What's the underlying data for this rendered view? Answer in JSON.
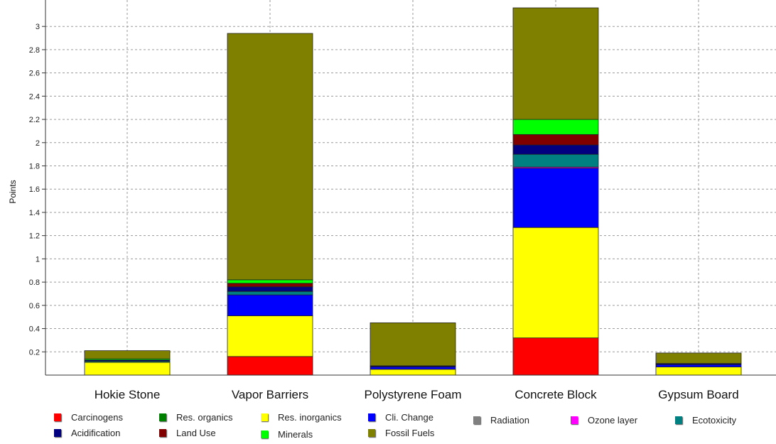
{
  "chart_data": {
    "type": "bar",
    "stacked": true,
    "title": "",
    "xlabel": "",
    "ylabel": "Points",
    "ylim": [
      0,
      3.16
    ],
    "yticks": [
      "0.2",
      "0.4",
      "0.6",
      "0.8",
      "1",
      "1.2",
      "1.4",
      "1.6",
      "1.8",
      "2",
      "2.2",
      "2.4",
      "2.6",
      "2.8",
      "3"
    ],
    "grid": true,
    "legend_position": "bottom",
    "categories": [
      "Hokie Stone",
      "Vapor Barriers",
      "Polystyrene Foam",
      "Concrete Block",
      "Gypsum Board"
    ],
    "series": [
      {
        "name": "Carcinogens",
        "color": "#ff0000",
        "values": [
          0.0,
          0.16,
          0.0,
          0.32,
          0.0
        ]
      },
      {
        "name": "Res. organics",
        "color": "#008000",
        "values": [
          0.0,
          0.0,
          0.0,
          0.0,
          0.0
        ]
      },
      {
        "name": "Res. inorganics",
        "color": "#ffff00",
        "values": [
          0.11,
          0.35,
          0.05,
          0.95,
          0.07
        ]
      },
      {
        "name": "Cli. Change",
        "color": "#0000ff",
        "values": [
          0.0,
          0.18,
          0.02,
          0.51,
          0.02
        ]
      },
      {
        "name": "Radiation",
        "color": "#808080",
        "values": [
          0.0,
          0.0,
          0.0,
          0.0,
          0.0
        ]
      },
      {
        "name": "Ozone layer",
        "color": "#ff00ff",
        "values": [
          0.0,
          0.0,
          0.0,
          0.01,
          0.0
        ]
      },
      {
        "name": "Ecotoxicity",
        "color": "#008080",
        "values": [
          0.01,
          0.03,
          0.0,
          0.11,
          0.0
        ]
      },
      {
        "name": "Acidification",
        "color": "#000080",
        "values": [
          0.01,
          0.04,
          0.01,
          0.08,
          0.01
        ]
      },
      {
        "name": "Land Use",
        "color": "#800000",
        "values": [
          0.0,
          0.03,
          0.0,
          0.09,
          0.0
        ]
      },
      {
        "name": "Minerals",
        "color": "#00ff00",
        "values": [
          0.01,
          0.03,
          0.0,
          0.13,
          0.0
        ]
      },
      {
        "name": "Fossil Fuels",
        "color": "#808000",
        "values": [
          0.07,
          2.12,
          0.37,
          0.96,
          0.09
        ]
      }
    ]
  }
}
